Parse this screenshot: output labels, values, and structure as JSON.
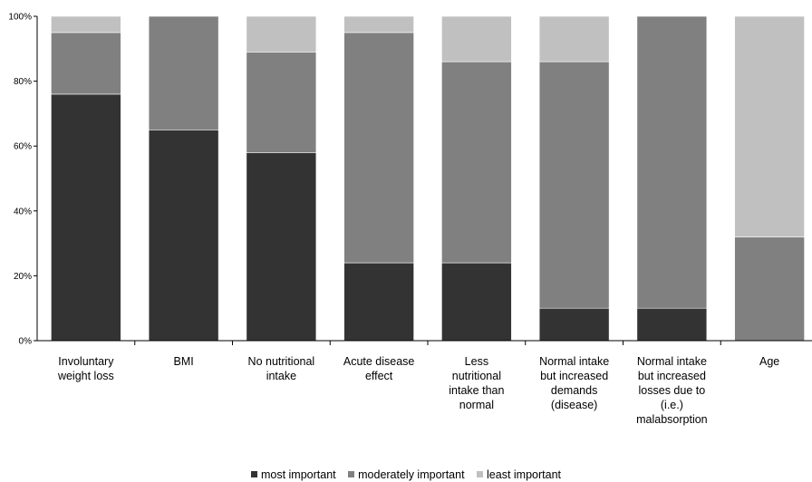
{
  "chart_data": {
    "type": "bar",
    "stacked": "percent",
    "categories": [
      [
        "Involuntary",
        "weight loss"
      ],
      [
        "BMI"
      ],
      [
        "No nutritional",
        "intake"
      ],
      [
        "Acute disease",
        "effect"
      ],
      [
        "Less",
        "nutritional",
        "intake than",
        "normal"
      ],
      [
        "Normal intake",
        "but increased",
        "demands",
        "(disease)"
      ],
      [
        "Normal intake",
        "but increased",
        "losses due to",
        "(i.e.)",
        "malabsorption"
      ],
      [
        "Age"
      ]
    ],
    "series": [
      {
        "name": "most important",
        "color": "#333333",
        "values": [
          76,
          65,
          58,
          24,
          24,
          10,
          10,
          0
        ]
      },
      {
        "name": "moderately important",
        "color": "#808080",
        "values": [
          19,
          35,
          31,
          71,
          62,
          76,
          90,
          32
        ]
      },
      {
        "name": "least important",
        "color": "#c0c0c0",
        "values": [
          5,
          0,
          11,
          5,
          14,
          14,
          0,
          68
        ]
      }
    ],
    "ylim": [
      0,
      100
    ],
    "yticks": [
      "0%",
      "20%",
      "40%",
      "60%",
      "80%",
      "100%"
    ],
    "grid": false,
    "legend_position": "bottom"
  }
}
